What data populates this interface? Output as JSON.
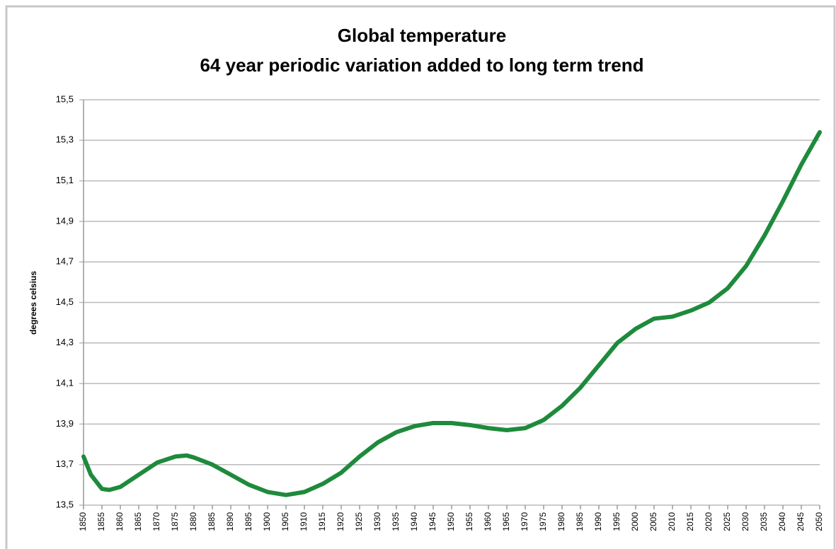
{
  "chart_data": {
    "type": "line",
    "title": "Global temperature",
    "subtitle": "64 year periodic variation added to long term trend",
    "y_label": "degrees celsius",
    "x": [
      1850,
      1852,
      1855,
      1857,
      1860,
      1865,
      1870,
      1875,
      1878,
      1880,
      1885,
      1890,
      1895,
      1900,
      1905,
      1910,
      1915,
      1920,
      1925,
      1930,
      1935,
      1940,
      1945,
      1950,
      1955,
      1960,
      1965,
      1970,
      1975,
      1980,
      1985,
      1990,
      1995,
      2000,
      2005,
      2010,
      2015,
      2020,
      2025,
      2030,
      2035,
      2040,
      2045,
      2050
    ],
    "series": [
      {
        "name": "Global temperature",
        "color": "#1e8a3c",
        "values": [
          13.74,
          13.65,
          13.58,
          13.575,
          13.59,
          13.65,
          13.71,
          13.74,
          13.745,
          13.735,
          13.7,
          13.65,
          13.6,
          13.565,
          13.55,
          13.565,
          13.605,
          13.66,
          13.74,
          13.81,
          13.86,
          13.89,
          13.905,
          13.905,
          13.895,
          13.88,
          13.87,
          13.88,
          13.92,
          13.99,
          14.08,
          14.19,
          14.3,
          14.37,
          14.42,
          14.43,
          14.46,
          14.5,
          14.57,
          14.68,
          14.83,
          15.0,
          15.18,
          15.34
        ]
      }
    ],
    "xlim": [
      1850,
      2050
    ],
    "xticks": [
      1850,
      1855,
      1860,
      1865,
      1870,
      1875,
      1880,
      1885,
      1890,
      1895,
      1900,
      1905,
      1910,
      1915,
      1920,
      1925,
      1930,
      1935,
      1940,
      1945,
      1950,
      1955,
      1960,
      1965,
      1970,
      1975,
      1980,
      1985,
      1990,
      1995,
      2000,
      2005,
      2010,
      2015,
      2020,
      2025,
      2030,
      2035,
      2040,
      2045,
      2050
    ],
    "ylim": [
      13.5,
      15.5
    ],
    "yticks": [
      {
        "value": 13.5,
        "label": "13,5"
      },
      {
        "value": 13.7,
        "label": "13,7"
      },
      {
        "value": 13.9,
        "label": "13,9"
      },
      {
        "value": 14.1,
        "label": "14,1"
      },
      {
        "value": 14.3,
        "label": "14,3"
      },
      {
        "value": 14.5,
        "label": "14,5"
      },
      {
        "value": 14.7,
        "label": "14,7"
      },
      {
        "value": 14.9,
        "label": "14,9"
      },
      {
        "value": 15.1,
        "label": "15,1"
      },
      {
        "value": 15.3,
        "label": "15,3"
      },
      {
        "value": 15.5,
        "label": "15,5"
      }
    ],
    "grid": true
  }
}
